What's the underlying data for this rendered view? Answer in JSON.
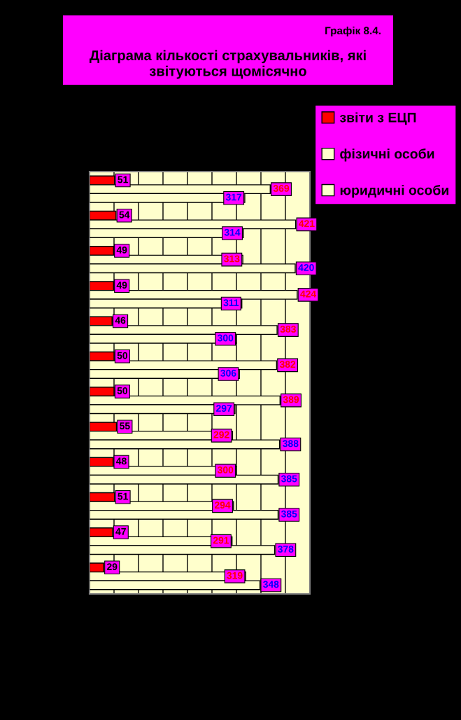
{
  "chart_data": {
    "type": "bar",
    "orientation": "horizontal",
    "title": "Діаграма кількості страхувальників, які\nзвітуються щомісячно",
    "annotations": [
      "Графік 8.4."
    ],
    "categories": [
      null,
      null,
      null,
      null,
      null,
      null,
      null,
      null,
      null,
      null,
      null,
      null
    ],
    "series": [
      {
        "name": "звіти з ЕЦП",
        "color": "#ff0000",
        "values": [
          51,
          54,
          49,
          49,
          46,
          50,
          50,
          55,
          48,
          51,
          47,
          29
        ]
      },
      {
        "name": "фізичні особи",
        "color": "#ffffcc",
        "values": [
          369,
          421,
          313,
          424,
          383,
          382,
          389,
          292,
          300,
          294,
          291,
          319
        ]
      },
      {
        "name": "юридичні особи",
        "color": "#ffffcc",
        "values": [
          317,
          314,
          420,
          311,
          300,
          306,
          297,
          388,
          385,
          385,
          378,
          348
        ]
      }
    ],
    "xlim": [
      0,
      450
    ],
    "xticks": [
      {
        "value": 0,
        "label": null
      },
      {
        "value": 50,
        "label": null
      },
      {
        "value": 100,
        "label": null
      },
      {
        "value": 150,
        "label": null
      },
      {
        "value": 200,
        "label": null
      },
      {
        "value": 250,
        "label": null
      },
      {
        "value": 300,
        "label": null
      },
      {
        "value": 350,
        "label": null
      },
      {
        "value": 400,
        "label": null
      },
      {
        "value": 450,
        "label": null
      }
    ],
    "grid": "x",
    "legend": "top right",
    "data_labels": true
  }
}
